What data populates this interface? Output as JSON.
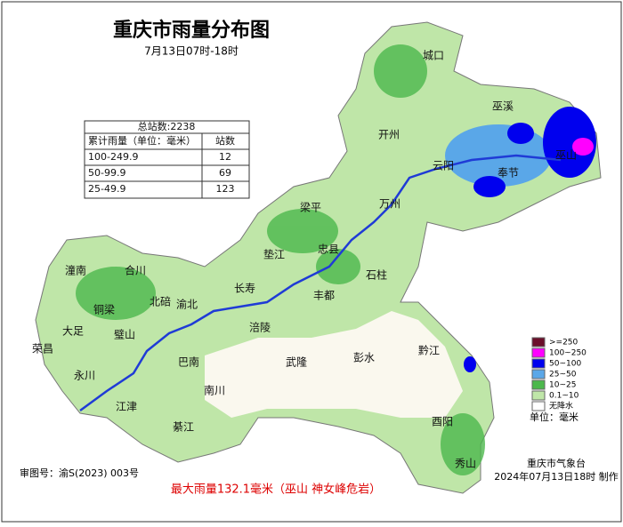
{
  "header": {
    "title": "重庆市雨量分布图",
    "subtitle": "7月13日07时-18时"
  },
  "table": {
    "total": "总站数:2238",
    "columns": [
      "累计雨量（单位：毫米）",
      "站数"
    ],
    "rows": [
      [
        "100-249.9",
        12
      ],
      [
        "50-99.9",
        69
      ],
      [
        "25-49.9",
        123
      ]
    ]
  },
  "legend": {
    "items": [
      {
        "label": ">=250",
        "color": "#6b0f2a"
      },
      {
        "label": "100~250",
        "color": "#ff00ff"
      },
      {
        "label": "50~100",
        "color": "#0000ee"
      },
      {
        "label": "25~50",
        "color": "#5aa7e8"
      },
      {
        "label": "10~25",
        "color": "#4cb84c"
      },
      {
        "label": "0.1~10",
        "color": "#bfe6a8"
      },
      {
        "label": "无降水",
        "color": "#ffffff"
      }
    ],
    "unit": "单位：毫米"
  },
  "districts": [
    "城口",
    "巫溪",
    "开州",
    "云阳",
    "奉节",
    "巫山",
    "万州",
    "梁平",
    "忠县",
    "垫江",
    "石柱",
    "丰都",
    "长寿",
    "涪陵",
    "潼南",
    "合川",
    "铜梁",
    "北碚",
    "渝北",
    "大足",
    "璧山",
    "荣昌",
    "永川",
    "巴南",
    "武隆",
    "彭水",
    "黔江",
    "南川",
    "江津",
    "綦江",
    "酉阳",
    "秀山"
  ],
  "footer": {
    "approval": "审图号：渝S(2023) 003号",
    "max_rain": "最大雨量132.1毫米（巫山 神女峰危岩）",
    "agency": "重庆市气象台",
    "made": "2024年07月13日18时 制作"
  }
}
